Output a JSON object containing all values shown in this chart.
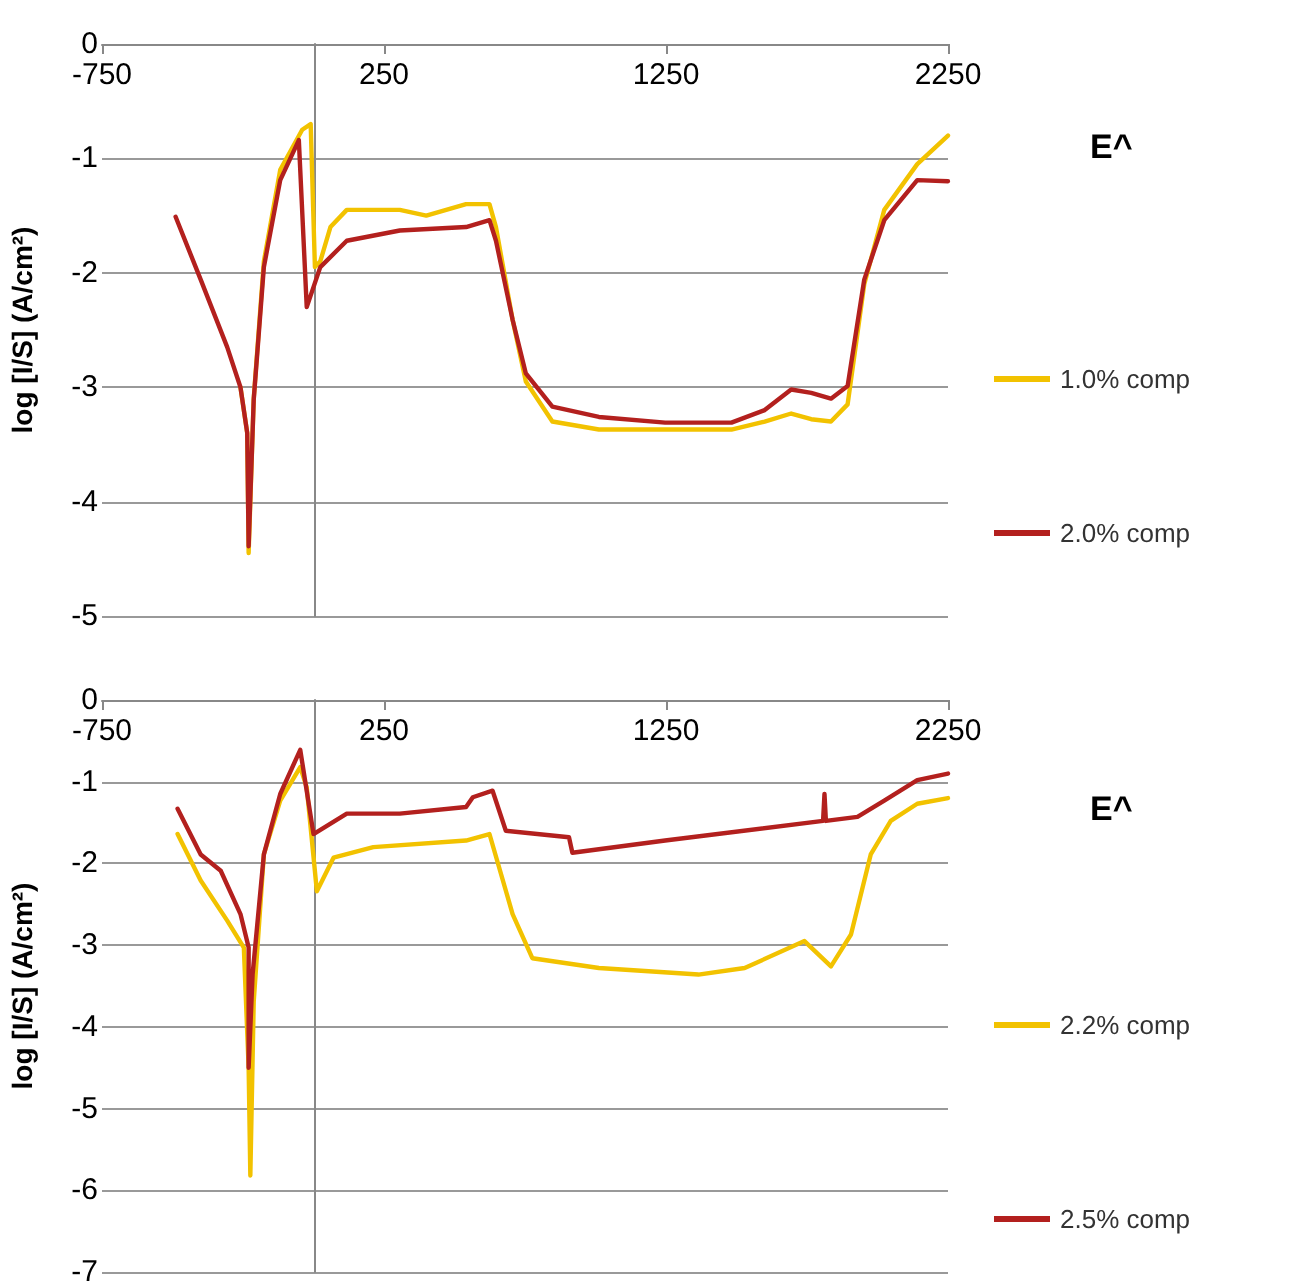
{
  "chart_data": [
    {
      "type": "line",
      "ylabel": "log [I/S] (A/cm²)",
      "legend_title": "E^",
      "legend": "right",
      "grid": "y",
      "marker": "none",
      "line_style": "solid",
      "xlim": [
        -750,
        2250
      ],
      "xticks": [
        -750,
        250,
        1250,
        2250
      ],
      "ylim": [
        -5,
        0
      ],
      "yticks": [
        0,
        -1,
        -2,
        -3,
        -4,
        -5
      ],
      "series": [
        {
          "name": "1.0% comp",
          "color": "#f2c200",
          "x": [
            -259,
            -235,
            -230,
            -212,
            -176,
            -118,
            -40,
            -10,
            5,
            24,
            60,
            118,
            306,
            400,
            541,
            624,
            647,
            706,
            753,
            847,
            1012,
            1247,
            1482,
            1600,
            1694,
            1765,
            1835,
            1894,
            1953,
            2024,
            2141,
            2250
          ],
          "values": [
            -3.0,
            -3.4,
            -4.45,
            -3.1,
            -1.9,
            -1.1,
            -0.75,
            -0.7,
            -1.95,
            -1.9,
            -1.6,
            -1.45,
            -1.45,
            -1.5,
            -1.4,
            -1.4,
            -1.6,
            -2.41,
            -2.95,
            -3.3,
            -3.37,
            -3.37,
            -3.37,
            -3.3,
            -3.23,
            -3.28,
            -3.3,
            -3.15,
            -2.1,
            -1.45,
            -1.05,
            -0.8
          ]
        },
        {
          "name": "2.0% comp",
          "color": "#b3201e",
          "x": [
            -489,
            -400,
            -306,
            -259,
            -235,
            -230,
            -212,
            -176,
            -118,
            -52,
            -24,
            24,
            118,
            306,
            541,
            624,
            647,
            706,
            753,
            847,
            1012,
            1247,
            1482,
            1600,
            1694,
            1765,
            1835,
            1894,
            1953,
            2024,
            2141,
            2250
          ],
          "values": [
            -1.51,
            -2.06,
            -2.65,
            -3.0,
            -3.4,
            -4.39,
            -3.11,
            -1.95,
            -1.19,
            -0.84,
            -2.3,
            -1.95,
            -1.72,
            -1.63,
            -1.6,
            -1.54,
            -1.72,
            -2.41,
            -2.88,
            -3.17,
            -3.26,
            -3.31,
            -3.31,
            -3.2,
            -3.02,
            -3.05,
            -3.1,
            -2.99,
            -2.06,
            -1.54,
            -1.19,
            -1.2
          ]
        }
      ]
    },
    {
      "type": "line",
      "ylabel": "log [I/S] (A/cm²)",
      "legend_title": "E^",
      "legend": "right",
      "grid": "y",
      "marker": "none",
      "line_style": "solid",
      "xlim": [
        -750,
        2250
      ],
      "xticks": [
        -750,
        250,
        1250,
        2250
      ],
      "ylim": [
        -7,
        0
      ],
      "yticks": [
        0,
        -1,
        -2,
        -3,
        -4,
        -5,
        -6,
        -7
      ],
      "series": [
        {
          "name": "2.2% comp",
          "color": "#f2c200",
          "x": [
            -482,
            -400,
            -306,
            -247,
            -230,
            -224,
            -212,
            -176,
            -118,
            -47,
            -24,
            12,
            71,
            212,
            541,
            624,
            706,
            776,
            1012,
            1365,
            1529,
            1741,
            1835,
            1906,
            1976,
            2047,
            2141,
            2250
          ],
          "values": [
            -1.64,
            -2.21,
            -2.7,
            -3.03,
            -4.5,
            -5.82,
            -3.69,
            -1.89,
            -1.23,
            -0.82,
            -1.07,
            -2.34,
            -1.93,
            -1.8,
            -1.72,
            -1.64,
            -2.62,
            -3.16,
            -3.28,
            -3.36,
            -3.28,
            -2.95,
            -3.26,
            -2.87,
            -1.89,
            -1.48,
            -1.27,
            -1.2
          ]
        },
        {
          "name": "2.5% comp",
          "color": "#b3201e",
          "x": [
            -482,
            -400,
            -329,
            -259,
            -230,
            -230,
            -216,
            -176,
            -118,
            -47,
            0,
            118,
            306,
            541,
            565,
            635,
            682,
            906,
            918,
            1247,
            1807,
            1812,
            1817,
            1929,
            2024,
            2141,
            2250
          ],
          "values": [
            -1.33,
            -1.89,
            -2.09,
            -2.62,
            -3.03,
            -4.5,
            -3.36,
            -1.89,
            -1.15,
            -0.61,
            -1.64,
            -1.39,
            -1.39,
            -1.31,
            -1.19,
            -1.11,
            -1.6,
            -1.68,
            -1.87,
            -1.72,
            -1.48,
            -1.15,
            -1.48,
            -1.43,
            -1.23,
            -0.98,
            -0.9
          ]
        }
      ]
    }
  ]
}
